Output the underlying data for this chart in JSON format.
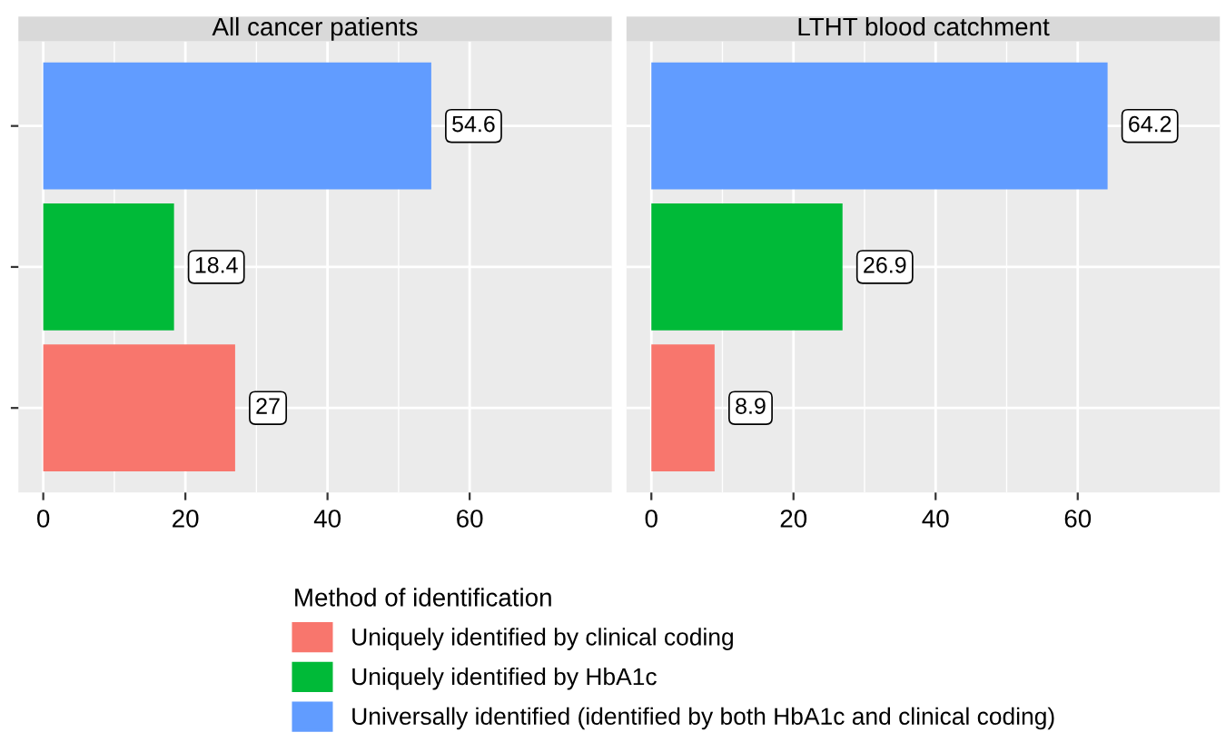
{
  "chart_data": [
    {
      "type": "bar",
      "orientation": "horizontal",
      "title": "All cancer patients",
      "categories": [
        null,
        null,
        null
      ],
      "xlim": [
        -3.5,
        80
      ],
      "xticks": [
        0,
        20,
        40,
        60
      ],
      "tick_labels": "x",
      "grid": true,
      "data_labels": true,
      "legend": "bottom",
      "legend_title": "Method of identification",
      "series": [
        {
          "name": "Uniquely identified by clinical coding",
          "color": "#f8766d",
          "values": [
            null,
            null,
            27
          ]
        },
        {
          "name": "Uniquely identified by HbA1c",
          "color": "#00ba38",
          "values": [
            null,
            18.4,
            null
          ]
        },
        {
          "name": "Universally identified (identified by both HbA1c and clinical coding)",
          "color": "#619cff",
          "values": [
            54.6,
            null,
            null
          ]
        }
      ]
    },
    {
      "type": "bar",
      "orientation": "horizontal",
      "title": "LTHT blood catchment",
      "categories": [
        null,
        null,
        null
      ],
      "xlim": [
        -3.5,
        80
      ],
      "xticks": [
        0,
        20,
        40,
        60
      ],
      "tick_labels": "x",
      "grid": true,
      "data_labels": true,
      "series": [
        {
          "color": "#f8766d",
          "values": [
            null,
            null,
            8.9
          ]
        },
        {
          "color": "#00ba38",
          "values": [
            null,
            26.9,
            null
          ]
        },
        {
          "color": "#619cff",
          "values": [
            64.2,
            null,
            null
          ]
        }
      ]
    }
  ]
}
